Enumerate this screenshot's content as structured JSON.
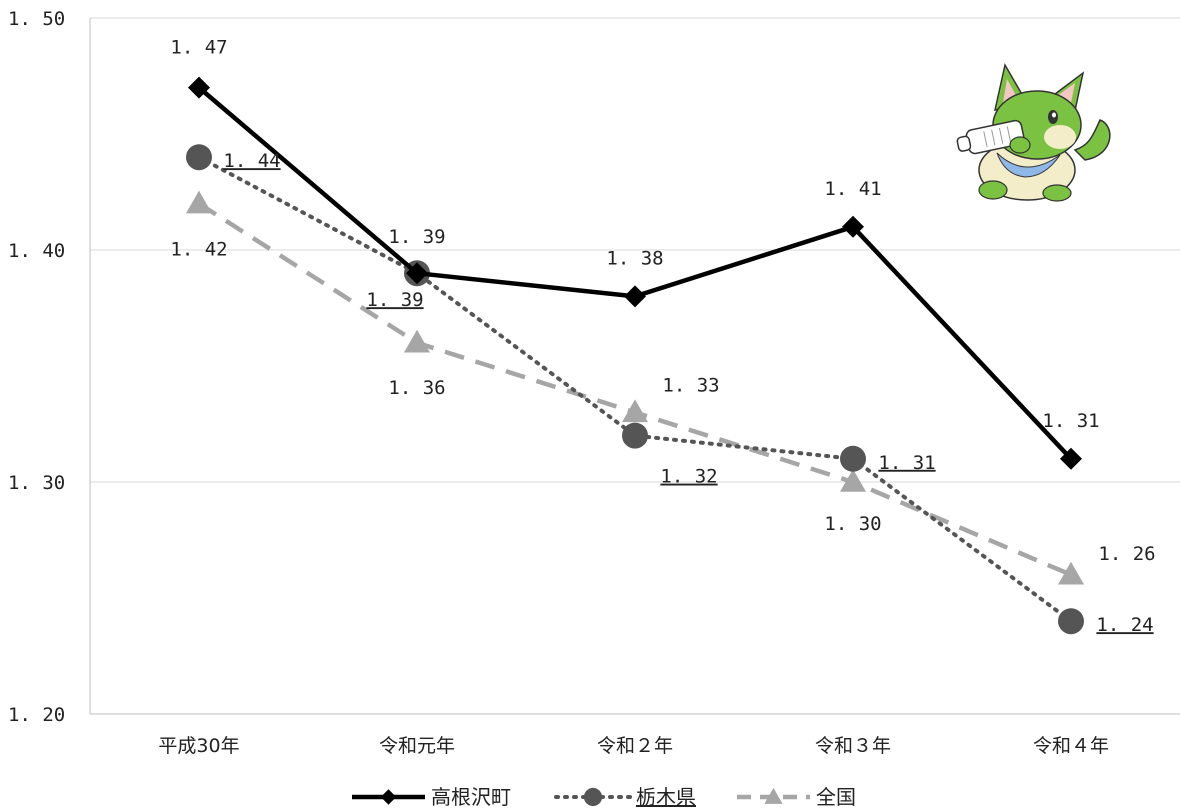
{
  "chart_data": {
    "type": "line",
    "categories": [
      "平成30年",
      "令和元年",
      "令和２年",
      "令和３年",
      "令和４年"
    ],
    "ylim": [
      1.2,
      1.5
    ],
    "yticks": [
      "1. 20",
      "1. 30",
      "1. 40",
      "1. 50"
    ],
    "ytick_values": [
      1.2,
      1.3,
      1.4,
      1.5
    ],
    "grid": true,
    "legend_position": "bottom",
    "series": [
      {
        "name": "高根沢町",
        "values": [
          1.47,
          1.39,
          1.38,
          1.41,
          1.31
        ],
        "labels": [
          "1. 47",
          "1. 39",
          "1. 38",
          "1. 41",
          "1. 31"
        ],
        "color": "#000000",
        "marker": "diamond",
        "line": "solid"
      },
      {
        "name": "栃木県",
        "values": [
          1.44,
          1.39,
          1.32,
          1.31,
          1.24
        ],
        "labels": [
          "1. 44",
          "1. 39",
          "1. 32",
          "1. 31",
          "1. 24"
        ],
        "color": "#555555",
        "marker": "circle",
        "line": "dotted",
        "underlined": true
      },
      {
        "name": "全国",
        "values": [
          1.42,
          1.36,
          1.33,
          1.3,
          1.26
        ],
        "labels": [
          "1. 42",
          "1. 36",
          "1. 33",
          "1. 30",
          "1. 26"
        ],
        "color": "#a6a6a6",
        "marker": "triangle",
        "line": "dashed"
      }
    ],
    "mascot_icon": "green-cat-mascot-drinking-milk-icon"
  }
}
